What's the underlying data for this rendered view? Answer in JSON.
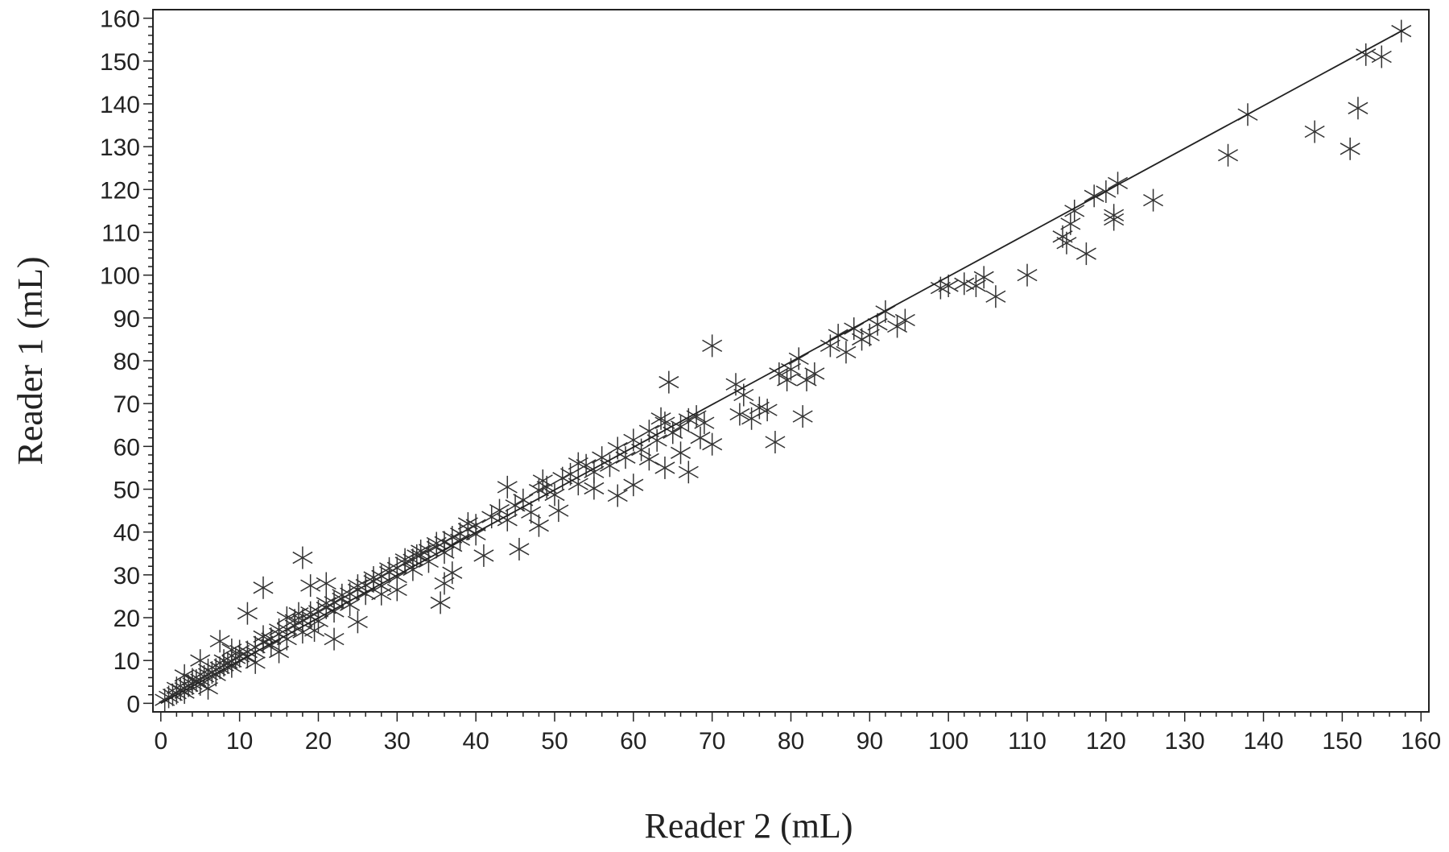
{
  "chart_data": {
    "type": "scatter",
    "xlabel": "Reader 2 (mL)",
    "ylabel": "Reader 1 (mL)",
    "xlim": [
      -1,
      161
    ],
    "ylim": [
      -2,
      162
    ],
    "xticks": [
      0,
      10,
      20,
      30,
      40,
      50,
      60,
      70,
      80,
      90,
      100,
      110,
      120,
      130,
      140,
      150,
      160
    ],
    "yticks": [
      0,
      10,
      20,
      30,
      40,
      50,
      60,
      70,
      80,
      90,
      100,
      110,
      120,
      130,
      140,
      150,
      160
    ],
    "marker": "asterisk",
    "grid": false,
    "series": [
      {
        "points": [
          [
            0.5,
            0.8
          ],
          [
            1.0,
            1.5
          ],
          [
            1.5,
            2.0
          ],
          [
            2.0,
            2.4
          ],
          [
            2.5,
            3.2
          ],
          [
            3.0,
            3.5
          ],
          [
            3.5,
            4.1
          ],
          [
            4.0,
            4.6
          ],
          [
            4.5,
            5.3
          ],
          [
            5.0,
            5.5
          ],
          [
            5.5,
            6.3
          ],
          [
            6.0,
            6.8
          ],
          [
            6.5,
            7.2
          ],
          [
            7.0,
            7.9
          ],
          [
            7.5,
            8.3
          ],
          [
            8.0,
            8.9
          ],
          [
            8.5,
            9.5
          ],
          [
            9.0,
            9.8
          ],
          [
            9.5,
            10.6
          ],
          [
            10.0,
            11.0
          ],
          [
            11.0,
            12.0
          ],
          [
            12.0,
            13.1
          ],
          [
            13.0,
            14.3
          ],
          [
            14.0,
            15.1
          ],
          [
            15.0,
            16.2
          ],
          [
            16.0,
            17.3
          ],
          [
            17.0,
            18.1
          ],
          [
            18.0,
            19.4
          ],
          [
            19.0,
            20.2
          ],
          [
            20.0,
            21.5
          ],
          [
            21.0,
            22.3
          ],
          [
            22.0,
            23.6
          ],
          [
            23.0,
            24.4
          ],
          [
            24.0,
            25.6
          ],
          [
            25.0,
            26.5
          ],
          [
            26.0,
            27.6
          ],
          [
            27.0,
            28.5
          ],
          [
            28.0,
            29.7
          ],
          [
            29.0,
            30.6
          ],
          [
            30.0,
            31.6
          ],
          [
            31.0,
            32.8
          ],
          [
            32.0,
            33.5
          ],
          [
            33.0,
            34.6
          ],
          [
            34.0,
            35.8
          ],
          [
            35.0,
            36.5
          ],
          [
            36.0,
            37.6
          ],
          [
            37.0,
            38.8
          ],
          [
            38.0,
            39.6
          ],
          [
            39.0,
            40.7
          ],
          [
            40.0,
            41.6
          ],
          [
            2.0,
            3.6
          ],
          [
            3.0,
            2.5
          ],
          [
            4.0,
            5.6
          ],
          [
            5.0,
            4.4
          ],
          [
            6.0,
            7.8
          ],
          [
            7.0,
            6.6
          ],
          [
            8.0,
            10.0
          ],
          [
            9.0,
            8.6
          ],
          [
            10.0,
            12.2
          ],
          [
            11.0,
            10.8
          ],
          [
            12.0,
            11.9
          ],
          [
            13.0,
            15.6
          ],
          [
            14.0,
            13.6
          ],
          [
            15.0,
            17.2
          ],
          [
            16.0,
            15.0
          ],
          [
            17.0,
            19.4
          ],
          [
            18.0,
            16.6
          ],
          [
            19.0,
            21.2
          ],
          [
            20.0,
            19.2
          ],
          [
            21.0,
            23.4
          ],
          [
            22.0,
            21.5
          ],
          [
            23.0,
            25.3
          ],
          [
            24.0,
            23.0
          ],
          [
            25.0,
            27.5
          ],
          [
            26.0,
            25.6
          ],
          [
            27.0,
            29.4
          ],
          [
            28.0,
            27.4
          ],
          [
            29.0,
            31.5
          ],
          [
            30.0,
            29.5
          ],
          [
            31.0,
            33.6
          ],
          [
            32.0,
            31.2
          ],
          [
            33.0,
            35.6
          ],
          [
            34.0,
            33.1
          ],
          [
            35.0,
            37.4
          ],
          [
            36.0,
            35.2
          ],
          [
            37.0,
            36.8
          ],
          [
            38.0,
            38.2
          ],
          [
            39.0,
            42.0
          ],
          [
            40.0,
            39.5
          ],
          [
            42.0,
            43.5
          ],
          [
            43.0,
            45.1
          ],
          [
            44.0,
            42.8
          ],
          [
            45.0,
            46.2
          ],
          [
            46.0,
            47.5
          ],
          [
            47.0,
            44.6
          ],
          [
            48.0,
            49.8
          ],
          [
            49.0,
            50.5
          ],
          [
            50.0,
            48.7
          ],
          [
            51.0,
            52.6
          ],
          [
            52.0,
            53.5
          ],
          [
            53.0,
            51.2
          ],
          [
            54.0,
            55.6
          ],
          [
            55.0,
            54.0
          ],
          [
            56.0,
            57.4
          ],
          [
            57.0,
            55.5
          ],
          [
            58.0,
            59.6
          ],
          [
            59.0,
            57.4
          ],
          [
            60.0,
            61.5
          ],
          [
            61.0,
            59.2
          ],
          [
            62.0,
            63.6
          ],
          [
            63.0,
            61.4
          ],
          [
            64.0,
            65.5
          ],
          [
            65.0,
            63.2
          ],
          [
            66.0,
            64.6
          ],
          [
            67.0,
            66.3
          ],
          [
            68.0,
            67.0
          ],
          [
            69.0,
            65.5
          ],
          [
            41.0,
            34.5
          ],
          [
            45.5,
            36.0
          ],
          [
            36.0,
            28.0
          ],
          [
            35.5,
            23.5
          ],
          [
            37.0,
            30.5
          ],
          [
            48.0,
            41.5
          ],
          [
            50.5,
            45.0
          ],
          [
            44.0,
            50.5
          ],
          [
            48.5,
            52.0
          ],
          [
            53.0,
            56.0
          ],
          [
            55.0,
            50.2
          ],
          [
            58.0,
            48.5
          ],
          [
            60.0,
            51.0
          ],
          [
            62.0,
            57.0
          ],
          [
            63.5,
            66.5
          ],
          [
            64.0,
            55.0
          ],
          [
            66.0,
            58.5
          ],
          [
            67.0,
            54.0
          ],
          [
            68.5,
            62.0
          ],
          [
            70.0,
            60.5
          ],
          [
            64.5,
            75.0
          ],
          [
            70.0,
            83.5
          ],
          [
            73.0,
            74.5
          ],
          [
            74.0,
            72.0
          ],
          [
            73.5,
            67.5
          ],
          [
            75.0,
            66.5
          ],
          [
            76.0,
            69.0
          ],
          [
            77.0,
            68.5
          ],
          [
            78.0,
            61.0
          ],
          [
            78.5,
            77.0
          ],
          [
            79.5,
            75.5
          ],
          [
            80.0,
            78.0
          ],
          [
            81.0,
            80.5
          ],
          [
            81.5,
            67.0
          ],
          [
            82.0,
            75.5
          ],
          [
            83.0,
            77.0
          ],
          [
            85.0,
            83.5
          ],
          [
            86.0,
            86.0
          ],
          [
            87.0,
            82.0
          ],
          [
            88.0,
            87.5
          ],
          [
            89.0,
            85.0
          ],
          [
            90.0,
            86.0
          ],
          [
            91.0,
            88.5
          ],
          [
            92.0,
            91.5
          ],
          [
            93.5,
            88.0
          ],
          [
            94.5,
            89.5
          ],
          [
            99.0,
            97.0
          ],
          [
            100.0,
            97.5
          ],
          [
            102.0,
            98.0
          ],
          [
            103.5,
            97.5
          ],
          [
            104.5,
            99.5
          ],
          [
            106.0,
            95.0
          ],
          [
            110.0,
            100.0
          ],
          [
            114.5,
            109.0
          ],
          [
            115.0,
            107.5
          ],
          [
            115.5,
            112.0
          ],
          [
            116.0,
            115.0
          ],
          [
            117.5,
            105.0
          ],
          [
            118.5,
            118.5
          ],
          [
            120.0,
            119.5
          ],
          [
            121.0,
            114.0
          ],
          [
            121.5,
            121.5
          ],
          [
            121.0,
            113.0
          ],
          [
            126.0,
            117.5
          ],
          [
            135.5,
            128.0
          ],
          [
            138.0,
            137.5
          ],
          [
            146.5,
            133.5
          ],
          [
            151.0,
            129.5
          ],
          [
            152.0,
            139.0
          ],
          [
            153.0,
            151.5
          ],
          [
            155.0,
            151.0
          ],
          [
            157.5,
            157.0
          ],
          [
            18.0,
            34.0
          ],
          [
            13.0,
            27.0
          ],
          [
            11.0,
            21.0
          ],
          [
            19.0,
            27.5
          ],
          [
            21.0,
            28.0
          ],
          [
            7.5,
            14.5
          ],
          [
            5.0,
            10.0
          ],
          [
            17.5,
            21.0
          ],
          [
            19.5,
            17.0
          ],
          [
            22.0,
            15.0
          ],
          [
            25.0,
            19.0
          ],
          [
            28.0,
            25.5
          ],
          [
            30.0,
            26.5
          ],
          [
            32.5,
            34.5
          ],
          [
            3.0,
            6.5
          ],
          [
            6.0,
            3.5
          ],
          [
            9.0,
            12.5
          ],
          [
            12.0,
            9.5
          ],
          [
            15.0,
            12.0
          ],
          [
            16.0,
            20.0
          ]
        ]
      }
    ],
    "fit_line": {
      "x": [
        0,
        158
      ],
      "y": [
        0,
        157.5
      ]
    }
  }
}
